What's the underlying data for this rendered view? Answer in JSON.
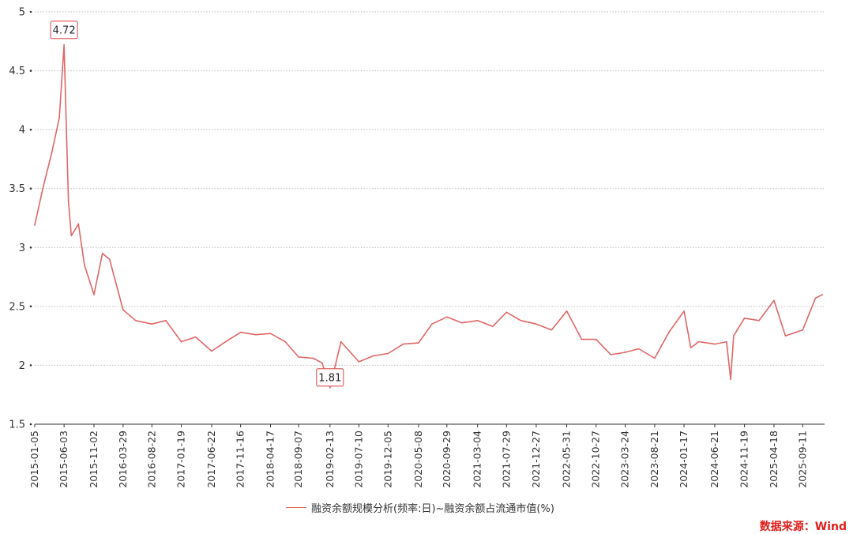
{
  "chart_data": {
    "type": "line",
    "title": "",
    "xlabel": "",
    "ylabel": "",
    "ylim": [
      1.5,
      5
    ],
    "yticks": [
      1.5,
      2,
      2.5,
      3,
      3.5,
      4,
      4.5,
      5
    ],
    "xticks": [
      "2015-01-05",
      "2015-06-03",
      "2015-11-02",
      "2016-03-29",
      "2016-08-22",
      "2017-01-19",
      "2017-06-22",
      "2017-11-16",
      "2018-04-17",
      "2018-09-07",
      "2019-02-13",
      "2019-07-10",
      "2019-12-05",
      "2020-05-08",
      "2020-09-29",
      "2021-03-04",
      "2021-07-29",
      "2021-12-27",
      "2022-05-31",
      "2022-10-27",
      "2023-03-24",
      "2023-08-21",
      "2024-01-17",
      "2024-06-21",
      "2024-11-19",
      "2025-04-18",
      "2025-09-11"
    ],
    "grid": true,
    "legend_position": "bottom",
    "series": [
      {
        "name": "融资余额规模分析(频率:日)~融资余额占流通市值(%)",
        "color": "#e06666",
        "x": [
          "2015-01-05",
          "2015-02-15",
          "2015-04-01",
          "2015-05-10",
          "2015-06-03",
          "2015-06-25",
          "2015-07-10",
          "2015-08-15",
          "2015-09-15",
          "2015-11-02",
          "2015-12-15",
          "2016-01-20",
          "2016-03-29",
          "2016-06-01",
          "2016-08-22",
          "2016-11-01",
          "2017-01-19",
          "2017-04-01",
          "2017-06-22",
          "2017-09-01",
          "2017-11-16",
          "2018-02-01",
          "2018-04-17",
          "2018-07-01",
          "2018-09-07",
          "2018-11-20",
          "2019-01-04",
          "2019-02-13",
          "2019-04-10",
          "2019-07-10",
          "2019-09-20",
          "2019-12-05",
          "2020-02-20",
          "2020-05-08",
          "2020-07-15",
          "2020-09-29",
          "2020-12-15",
          "2021-03-04",
          "2021-05-20",
          "2021-07-29",
          "2021-10-10",
          "2021-12-27",
          "2022-03-15",
          "2022-05-31",
          "2022-08-15",
          "2022-10-27",
          "2023-01-10",
          "2023-03-24",
          "2023-06-01",
          "2023-08-21",
          "2023-11-01",
          "2024-01-17",
          "2024-02-20",
          "2024-04-01",
          "2024-06-21",
          "2024-08-20",
          "2024-09-10",
          "2024-09-25",
          "2024-11-19",
          "2025-02-01",
          "2025-04-18",
          "2025-06-15",
          "2025-09-11",
          "2025-11-15",
          "2025-12-20"
        ],
        "values": [
          3.19,
          3.5,
          3.8,
          4.1,
          4.72,
          3.4,
          3.1,
          3.2,
          2.85,
          2.6,
          2.95,
          2.9,
          2.47,
          2.38,
          2.35,
          2.38,
          2.2,
          2.24,
          2.12,
          2.2,
          2.28,
          2.26,
          2.27,
          2.2,
          2.07,
          2.06,
          2.02,
          1.81,
          2.2,
          2.03,
          2.08,
          2.1,
          2.18,
          2.19,
          2.35,
          2.41,
          2.36,
          2.38,
          2.33,
          2.45,
          2.38,
          2.35,
          2.3,
          2.46,
          2.22,
          2.22,
          2.09,
          2.11,
          2.14,
          2.06,
          2.28,
          2.46,
          2.15,
          2.2,
          2.18,
          2.2,
          1.88,
          2.25,
          2.4,
          2.38,
          2.55,
          2.25,
          2.3,
          2.57,
          2.6
        ]
      }
    ],
    "annotations": [
      {
        "x": "2015-06-03",
        "y": 4.72,
        "label": "4.72"
      },
      {
        "x": "2019-02-13",
        "y": 1.81,
        "label": "1.81"
      }
    ]
  },
  "legend": {
    "label": "融资余额规模分析(频率:日)~融资余额占流通市值(%)"
  },
  "source": "数据来源：Wind"
}
